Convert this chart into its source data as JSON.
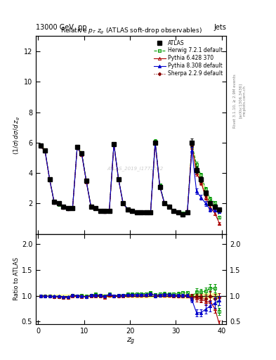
{
  "title_top": "13000 GeV  pp",
  "title_right": "Jets",
  "plot_title": "Relative $p_{T}$ $z_g$ (ATLAS soft-drop observables)",
  "ylabel_main": "(1/σ) dσ/d z_g",
  "ylabel_ratio": "Ratio to ATLAS",
  "xlabel": "z_g",
  "watermark": "ATLAS_2019_I1772062",
  "rivet_text": "Rivet 3.1.10, ≥ 2.9M events",
  "arxiv_text": "[arXiv:1306.3436]",
  "mcplots_text": "mcplots.cern.ch",
  "ylim_main": [
    0,
    13
  ],
  "ylim_ratio": [
    0.45,
    2.2
  ],
  "xlim": [
    -0.5,
    41
  ],
  "yticks_main": [
    2,
    4,
    6,
    8,
    10,
    12
  ],
  "yticks_ratio": [
    0.5,
    1.0,
    1.5,
    2.0
  ],
  "xticks": [
    0,
    10,
    20,
    30,
    40
  ],
  "x_data": [
    0.5,
    1.5,
    2.5,
    3.5,
    4.5,
    5.5,
    6.5,
    7.5,
    8.5,
    9.5,
    10.5,
    11.5,
    12.5,
    13.5,
    14.5,
    15.5,
    16.5,
    17.5,
    18.5,
    19.5,
    20.5,
    21.5,
    22.5,
    23.5,
    24.5,
    25.5,
    26.5,
    27.5,
    28.5,
    29.5,
    30.5,
    31.5,
    32.5,
    33.5,
    34.5,
    35.5,
    36.5,
    37.5,
    38.5,
    39.5
  ],
  "atlas_y": [
    5.8,
    5.5,
    3.6,
    2.1,
    2.0,
    1.8,
    1.7,
    1.7,
    5.7,
    5.3,
    3.5,
    1.8,
    1.7,
    1.5,
    1.5,
    1.5,
    5.9,
    3.6,
    2.0,
    1.6,
    1.5,
    1.4,
    1.4,
    1.4,
    1.4,
    6.0,
    3.1,
    2.0,
    1.8,
    1.5,
    1.4,
    1.3,
    1.4,
    6.0,
    4.2,
    3.6,
    2.7,
    2.0,
    1.8,
    1.6
  ],
  "atlas_yerr": [
    0.12,
    0.1,
    0.09,
    0.07,
    0.07,
    0.06,
    0.06,
    0.06,
    0.12,
    0.1,
    0.09,
    0.07,
    0.06,
    0.06,
    0.06,
    0.06,
    0.12,
    0.09,
    0.07,
    0.06,
    0.06,
    0.06,
    0.06,
    0.06,
    0.06,
    0.15,
    0.1,
    0.08,
    0.07,
    0.06,
    0.06,
    0.06,
    0.07,
    0.25,
    0.2,
    0.18,
    0.15,
    0.12,
    0.1,
    0.09
  ],
  "herwig_y": [
    5.75,
    5.45,
    3.55,
    2.05,
    1.95,
    1.75,
    1.65,
    1.72,
    5.7,
    5.35,
    3.45,
    1.82,
    1.75,
    1.52,
    1.48,
    1.55,
    5.92,
    3.65,
    2.02,
    1.65,
    1.55,
    1.45,
    1.45,
    1.45,
    1.48,
    6.1,
    3.2,
    2.08,
    1.85,
    1.55,
    1.45,
    1.38,
    1.48,
    5.9,
    4.55,
    3.85,
    2.95,
    2.3,
    2.05,
    1.1
  ],
  "herwig_yerr": [
    0.1,
    0.09,
    0.08,
    0.06,
    0.06,
    0.05,
    0.05,
    0.05,
    0.1,
    0.09,
    0.07,
    0.06,
    0.05,
    0.05,
    0.05,
    0.05,
    0.1,
    0.08,
    0.06,
    0.05,
    0.05,
    0.05,
    0.05,
    0.05,
    0.05,
    0.13,
    0.09,
    0.07,
    0.06,
    0.05,
    0.05,
    0.05,
    0.06,
    0.22,
    0.18,
    0.16,
    0.15,
    0.12,
    0.1,
    0.08
  ],
  "pythia6_y": [
    5.76,
    5.42,
    3.56,
    2.06,
    1.96,
    1.74,
    1.64,
    1.7,
    5.66,
    5.22,
    3.42,
    1.8,
    1.7,
    1.5,
    1.46,
    1.52,
    5.88,
    3.6,
    2.0,
    1.62,
    1.52,
    1.42,
    1.42,
    1.42,
    1.45,
    6.0,
    3.12,
    2.02,
    1.82,
    1.5,
    1.4,
    1.3,
    1.4,
    5.8,
    4.0,
    3.4,
    2.4,
    1.75,
    1.35,
    0.7
  ],
  "pythia6_yerr": [
    0.1,
    0.09,
    0.08,
    0.06,
    0.06,
    0.05,
    0.05,
    0.05,
    0.1,
    0.09,
    0.07,
    0.06,
    0.05,
    0.05,
    0.05,
    0.05,
    0.1,
    0.08,
    0.06,
    0.05,
    0.05,
    0.05,
    0.05,
    0.05,
    0.05,
    0.13,
    0.09,
    0.07,
    0.06,
    0.05,
    0.05,
    0.05,
    0.06,
    0.22,
    0.18,
    0.16,
    0.15,
    0.12,
    0.1,
    0.08
  ],
  "pythia8_y": [
    5.78,
    5.46,
    3.58,
    2.08,
    1.98,
    1.76,
    1.66,
    1.72,
    5.68,
    5.26,
    3.44,
    1.82,
    1.72,
    1.52,
    1.48,
    1.54,
    5.9,
    3.62,
    2.02,
    1.63,
    1.53,
    1.43,
    1.43,
    1.43,
    1.46,
    6.02,
    3.14,
    2.04,
    1.83,
    1.52,
    1.41,
    1.31,
    1.42,
    5.5,
    2.8,
    2.4,
    2.0,
    1.6,
    1.55,
    1.45
  ],
  "pythia8_yerr": [
    0.1,
    0.09,
    0.08,
    0.06,
    0.06,
    0.05,
    0.05,
    0.05,
    0.1,
    0.09,
    0.07,
    0.06,
    0.05,
    0.05,
    0.05,
    0.05,
    0.1,
    0.08,
    0.06,
    0.05,
    0.05,
    0.05,
    0.05,
    0.05,
    0.05,
    0.13,
    0.09,
    0.07,
    0.06,
    0.05,
    0.05,
    0.05,
    0.06,
    0.22,
    0.18,
    0.16,
    0.15,
    0.12,
    0.1,
    0.09
  ],
  "sherpa_y": [
    5.77,
    5.43,
    3.57,
    2.07,
    1.97,
    1.75,
    1.65,
    1.71,
    5.67,
    5.23,
    3.43,
    1.81,
    1.71,
    1.51,
    1.47,
    1.53,
    5.89,
    3.61,
    2.01,
    1.62,
    1.52,
    1.42,
    1.42,
    1.42,
    1.45,
    6.01,
    3.13,
    2.03,
    1.82,
    1.51,
    1.4,
    1.3,
    1.41,
    5.85,
    4.1,
    3.45,
    2.55,
    2.0,
    1.7,
    1.55
  ],
  "sherpa_yerr": [
    0.1,
    0.09,
    0.08,
    0.06,
    0.06,
    0.05,
    0.05,
    0.05,
    0.1,
    0.09,
    0.07,
    0.06,
    0.05,
    0.05,
    0.05,
    0.05,
    0.1,
    0.08,
    0.06,
    0.05,
    0.05,
    0.05,
    0.05,
    0.05,
    0.05,
    0.13,
    0.09,
    0.07,
    0.06,
    0.05,
    0.05,
    0.05,
    0.06,
    0.22,
    0.18,
    0.16,
    0.15,
    0.12,
    0.1,
    0.09
  ],
  "atlas_color": "#000000",
  "herwig_color": "#009900",
  "pythia6_color": "#aa0000",
  "pythia8_color": "#0000cc",
  "sherpa_color": "#880000",
  "atlas_band_color": "#ffff88",
  "atlas_band_alpha": 0.8,
  "ratio_herwig": [
    0.99,
    0.99,
    0.99,
    0.98,
    0.98,
    0.97,
    0.97,
    1.01,
    1.0,
    1.01,
    0.99,
    1.01,
    1.03,
    1.01,
    0.99,
    1.03,
    1.0,
    1.01,
    1.01,
    1.03,
    1.03,
    1.04,
    1.04,
    1.04,
    1.06,
    1.02,
    1.03,
    1.04,
    1.03,
    1.03,
    1.04,
    1.06,
    1.06,
    0.98,
    1.08,
    1.07,
    1.09,
    1.15,
    1.14,
    0.69
  ],
  "ratio_pythia6": [
    0.99,
    0.99,
    0.99,
    0.98,
    0.98,
    0.97,
    0.96,
    1.0,
    0.99,
    0.98,
    0.98,
    1.0,
    1.0,
    1.0,
    0.97,
    1.01,
    1.0,
    1.0,
    1.0,
    1.01,
    1.01,
    1.01,
    1.01,
    1.01,
    1.04,
    1.0,
    1.01,
    1.01,
    1.01,
    1.0,
    1.0,
    1.0,
    1.0,
    0.97,
    0.95,
    0.94,
    0.89,
    0.88,
    0.75,
    0.44
  ],
  "ratio_pythia8": [
    1.0,
    0.99,
    0.99,
    0.99,
    0.99,
    0.98,
    0.98,
    1.01,
    1.0,
    0.99,
    0.98,
    1.01,
    1.01,
    1.01,
    0.99,
    1.03,
    1.0,
    1.01,
    1.01,
    1.02,
    1.02,
    1.02,
    1.02,
    1.02,
    1.04,
    1.0,
    1.01,
    1.02,
    1.02,
    1.01,
    1.01,
    1.01,
    1.01,
    0.92,
    0.67,
    0.67,
    0.74,
    0.8,
    0.86,
    0.91
  ],
  "ratio_sherpa": [
    0.99,
    0.99,
    0.99,
    0.98,
    0.98,
    0.97,
    0.97,
    1.01,
    0.99,
    0.99,
    0.98,
    1.01,
    1.01,
    1.01,
    0.98,
    1.02,
    1.0,
    1.0,
    1.01,
    1.01,
    1.01,
    1.01,
    1.01,
    1.01,
    1.04,
    1.0,
    1.01,
    1.02,
    1.01,
    1.01,
    1.0,
    1.0,
    1.01,
    0.98,
    0.98,
    0.96,
    0.94,
    1.0,
    0.94,
    0.97
  ],
  "ratio_herwig_err": [
    0.02,
    0.02,
    0.02,
    0.02,
    0.02,
    0.02,
    0.02,
    0.02,
    0.02,
    0.02,
    0.02,
    0.02,
    0.02,
    0.02,
    0.02,
    0.02,
    0.02,
    0.02,
    0.02,
    0.02,
    0.02,
    0.02,
    0.02,
    0.02,
    0.02,
    0.03,
    0.03,
    0.03,
    0.03,
    0.03,
    0.03,
    0.03,
    0.03,
    0.05,
    0.06,
    0.06,
    0.07,
    0.08,
    0.08,
    0.07
  ],
  "ratio_pythia6_err": [
    0.02,
    0.02,
    0.02,
    0.02,
    0.02,
    0.02,
    0.02,
    0.02,
    0.02,
    0.02,
    0.02,
    0.02,
    0.02,
    0.02,
    0.02,
    0.02,
    0.02,
    0.02,
    0.02,
    0.02,
    0.02,
    0.02,
    0.02,
    0.02,
    0.02,
    0.03,
    0.03,
    0.03,
    0.03,
    0.03,
    0.03,
    0.03,
    0.03,
    0.05,
    0.06,
    0.07,
    0.08,
    0.09,
    0.09,
    0.07
  ],
  "ratio_pythia8_err": [
    0.02,
    0.02,
    0.02,
    0.02,
    0.02,
    0.02,
    0.02,
    0.02,
    0.02,
    0.02,
    0.02,
    0.02,
    0.02,
    0.02,
    0.02,
    0.02,
    0.02,
    0.02,
    0.02,
    0.02,
    0.02,
    0.02,
    0.02,
    0.02,
    0.02,
    0.03,
    0.03,
    0.03,
    0.03,
    0.03,
    0.03,
    0.03,
    0.03,
    0.05,
    0.07,
    0.07,
    0.09,
    0.1,
    0.1,
    0.09
  ],
  "ratio_sherpa_err": [
    0.02,
    0.02,
    0.02,
    0.02,
    0.02,
    0.02,
    0.02,
    0.02,
    0.02,
    0.02,
    0.02,
    0.02,
    0.02,
    0.02,
    0.02,
    0.02,
    0.02,
    0.02,
    0.02,
    0.02,
    0.02,
    0.02,
    0.02,
    0.02,
    0.02,
    0.03,
    0.03,
    0.03,
    0.03,
    0.03,
    0.03,
    0.03,
    0.03,
    0.05,
    0.06,
    0.07,
    0.08,
    0.09,
    0.09,
    0.08
  ]
}
